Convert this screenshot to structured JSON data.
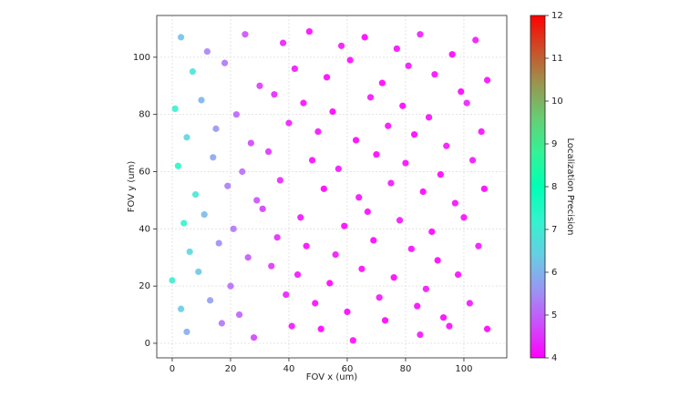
{
  "chart_data": {
    "type": "scatter",
    "x_label": "FOV x (um)",
    "y_label": "FOV y (um)",
    "colorbar_label": "Localization Precision",
    "colormap": "rainbow",
    "clim": [
      4,
      12
    ],
    "cticks": [
      4,
      5,
      6,
      7,
      8,
      9,
      10,
      11,
      12
    ],
    "xlim": [
      -5.3,
      114.7
    ],
    "ylim": [
      -5.1,
      114.6
    ],
    "xticks": [
      0,
      20,
      40,
      60,
      80,
      100
    ],
    "yticks": [
      0,
      20,
      40,
      60,
      80,
      100
    ],
    "grid": true,
    "x": [
      3,
      12,
      25,
      38,
      47,
      58,
      66,
      77,
      85,
      96,
      104,
      108,
      7,
      18,
      30,
      42,
      53,
      61,
      72,
      81,
      90,
      99,
      1,
      10,
      22,
      35,
      45,
      55,
      68,
      79,
      88,
      101,
      5,
      15,
      27,
      40,
      50,
      63,
      74,
      83,
      94,
      106,
      2,
      14,
      24,
      33,
      48,
      57,
      70,
      80,
      92,
      103,
      8,
      19,
      29,
      37,
      52,
      64,
      75,
      86,
      97,
      107,
      4,
      11,
      21,
      31,
      44,
      59,
      67,
      78,
      89,
      100,
      6,
      16,
      26,
      36,
      46,
      56,
      69,
      82,
      91,
      105,
      0,
      9,
      20,
      34,
      43,
      54,
      65,
      76,
      87,
      98,
      3,
      13,
      23,
      39,
      49,
      60,
      71,
      84,
      93,
      102,
      5,
      17,
      28,
      41,
      51,
      62,
      73,
      85,
      95,
      108
    ],
    "y": [
      107,
      102,
      108,
      105,
      109,
      104,
      107,
      103,
      108,
      101,
      106,
      92,
      95,
      98,
      90,
      96,
      93,
      99,
      91,
      97,
      94,
      88,
      82,
      85,
      80,
      87,
      84,
      81,
      86,
      83,
      79,
      84,
      72,
      75,
      70,
      77,
      74,
      71,
      76,
      73,
      69,
      74,
      62,
      65,
      60,
      67,
      64,
      61,
      66,
      63,
      59,
      64,
      52,
      55,
      50,
      57,
      54,
      51,
      56,
      53,
      49,
      54,
      42,
      45,
      40,
      47,
      44,
      41,
      46,
      43,
      39,
      44,
      32,
      35,
      30,
      37,
      34,
      31,
      36,
      33,
      29,
      34,
      22,
      25,
      20,
      27,
      24,
      21,
      26,
      23,
      19,
      24,
      12,
      15,
      10,
      17,
      14,
      11,
      16,
      13,
      9,
      14,
      4,
      7,
      2,
      6,
      5,
      1,
      8,
      3,
      6,
      5
    ],
    "c": [
      6.2,
      5.4,
      4.8,
      4.3,
      4.1,
      4.2,
      4.0,
      4.1,
      4.3,
      4.0,
      4.2,
      4.1,
      6.8,
      5.2,
      4.6,
      4.2,
      4.0,
      4.1,
      4.0,
      4.2,
      4.1,
      4.0,
      7.1,
      6.0,
      5.0,
      4.4,
      4.1,
      4.0,
      4.2,
      4.0,
      4.1,
      4.3,
      6.5,
      5.6,
      4.7,
      4.3,
      4.2,
      4.0,
      4.1,
      4.0,
      4.2,
      4.1,
      7.4,
      5.8,
      5.1,
      4.5,
      4.1,
      4.2,
      4.0,
      4.1,
      4.0,
      4.2,
      6.9,
      5.3,
      4.8,
      4.4,
      4.0,
      4.1,
      4.2,
      4.0,
      4.1,
      4.0,
      7.2,
      6.1,
      5.2,
      4.6,
      4.2,
      4.0,
      4.1,
      4.2,
      4.0,
      4.1,
      6.6,
      5.5,
      4.9,
      4.4,
      4.1,
      4.2,
      4.0,
      4.1,
      4.0,
      4.2,
      7.0,
      6.3,
      5.1,
      4.5,
      4.2,
      4.0,
      4.1,
      4.0,
      4.2,
      4.1,
      6.4,
      5.7,
      5.0,
      4.3,
      4.1,
      4.0,
      4.2,
      4.1,
      4.0,
      4.2,
      5.9,
      5.2,
      4.7,
      4.2,
      4.0,
      4.1,
      4.0,
      4.2,
      4.1,
      4.0
    ]
  }
}
